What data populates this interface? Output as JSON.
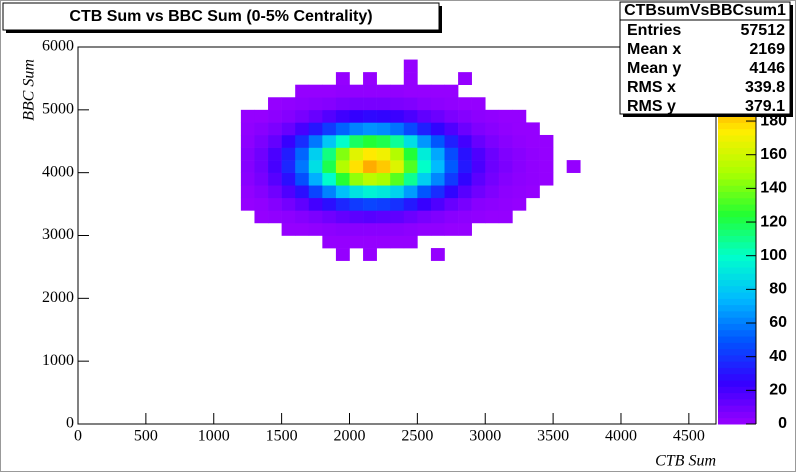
{
  "chart_data": {
    "type": "heatmap",
    "title": "CTB Sum vs BBC Sum (0-5% Centrality)",
    "x_label": "CTB Sum",
    "y_label": "BBC Sum",
    "xlim": [
      0,
      4700
    ],
    "xticks": [
      0,
      500,
      1000,
      1500,
      2000,
      2500,
      3000,
      3500,
      4000,
      4500
    ],
    "ylim": [
      0,
      6000
    ],
    "yticks": [
      0,
      1000,
      2000,
      3000,
      4000,
      5000,
      6000
    ],
    "x_bins": [
      1200,
      1300,
      1400,
      1500,
      1600,
      1700,
      1800,
      1900,
      2000,
      2100,
      2200,
      2300,
      2400,
      2500,
      2600,
      2700,
      2800,
      2900,
      3000,
      3100,
      3200,
      3300,
      3400,
      3500,
      3600,
      3700,
      3800
    ],
    "y_bins": [
      2600,
      2800,
      3000,
      3200,
      3400,
      3600,
      3800,
      4000,
      4200,
      4400,
      4600,
      4800,
      5000,
      5200,
      5400,
      5600,
      5800
    ],
    "values": [
      [
        0,
        0,
        0,
        0,
        0,
        0,
        0,
        1,
        0,
        1,
        0,
        0,
        0,
        0,
        1,
        0,
        0,
        0,
        0,
        0,
        0,
        0,
        0,
        0,
        0,
        0
      ],
      [
        0,
        0,
        0,
        0,
        0,
        0,
        1,
        1,
        1,
        1,
        1,
        1,
        1,
        0,
        0,
        0,
        0,
        0,
        0,
        0,
        0,
        0,
        0,
        0,
        0,
        0
      ],
      [
        0,
        0,
        0,
        1,
        1,
        2,
        3,
        4,
        4,
        4,
        4,
        4,
        3,
        2,
        2,
        1,
        1,
        0,
        0,
        0,
        0,
        0,
        0,
        0,
        0,
        0
      ],
      [
        0,
        1,
        2,
        3,
        5,
        7,
        10,
        13,
        15,
        16,
        15,
        14,
        11,
        8,
        6,
        4,
        3,
        2,
        1,
        1,
        0,
        0,
        0,
        0,
        0,
        0
      ],
      [
        1,
        2,
        5,
        9,
        14,
        21,
        29,
        36,
        42,
        45,
        43,
        39,
        32,
        24,
        18,
        12,
        8,
        4,
        3,
        2,
        1,
        0,
        0,
        0,
        0,
        0
      ],
      [
        2,
        5,
        10,
        18,
        29,
        45,
        61,
        77,
        89,
        95,
        92,
        83,
        67,
        50,
        38,
        26,
        16,
        10,
        6,
        3,
        2,
        1,
        0,
        0,
        0,
        0
      ],
      [
        4,
        8,
        16,
        29,
        48,
        72,
        99,
        125,
        145,
        154,
        149,
        134,
        109,
        82,
        62,
        42,
        26,
        15,
        9,
        5,
        3,
        2,
        1,
        0,
        0,
        0
      ],
      [
        5,
        10,
        20,
        36,
        58,
        88,
        120,
        152,
        177,
        188,
        182,
        164,
        133,
        100,
        75,
        51,
        32,
        19,
        11,
        7,
        4,
        2,
        1,
        0,
        1,
        0
      ],
      [
        5,
        10,
        19,
        33,
        54,
        82,
        112,
        142,
        165,
        175,
        170,
        152,
        124,
        93,
        70,
        47,
        30,
        18,
        11,
        6,
        4,
        2,
        1,
        0,
        0,
        0
      ],
      [
        3,
        7,
        13,
        24,
        38,
        58,
        79,
        100,
        117,
        124,
        120,
        108,
        88,
        66,
        50,
        34,
        21,
        12,
        7,
        4,
        2,
        1,
        1,
        0,
        0,
        0
      ],
      [
        2,
        4,
        7,
        12,
        20,
        31,
        42,
        53,
        61,
        65,
        63,
        57,
        46,
        34,
        26,
        18,
        11,
        6,
        4,
        2,
        1,
        1,
        0,
        0,
        0,
        0
      ],
      [
        1,
        1,
        3,
        5,
        8,
        12,
        17,
        22,
        25,
        27,
        26,
        23,
        19,
        14,
        11,
        7,
        5,
        3,
        2,
        1,
        1,
        0,
        0,
        0,
        0,
        0
      ],
      [
        0,
        0,
        1,
        2,
        3,
        4,
        5,
        7,
        8,
        8,
        8,
        7,
        6,
        4,
        3,
        2,
        1,
        1,
        0,
        0,
        0,
        0,
        0,
        0,
        0,
        0
      ],
      [
        0,
        0,
        0,
        0,
        1,
        1,
        1,
        2,
        2,
        2,
        2,
        2,
        1,
        1,
        1,
        1,
        0,
        0,
        0,
        0,
        0,
        0,
        0,
        0,
        0,
        0
      ],
      [
        0,
        0,
        0,
        0,
        0,
        0,
        0,
        1,
        0,
        1,
        0,
        0,
        1,
        0,
        0,
        0,
        1,
        0,
        0,
        0,
        0,
        0,
        0,
        0,
        0,
        0
      ],
      [
        0,
        0,
        0,
        0,
        0,
        0,
        0,
        0,
        0,
        0,
        0,
        0,
        1,
        0,
        0,
        0,
        0,
        0,
        0,
        0,
        0,
        0,
        0,
        0,
        0,
        0
      ]
    ],
    "zlim": [
      0,
      224
    ],
    "zticks": [
      0,
      20,
      40,
      60,
      80,
      100,
      120,
      140,
      160,
      180
    ],
    "palette": [
      "#9900ff",
      "#3300ff",
      "#0055ff",
      "#00bbff",
      "#00ffcc",
      "#22ff33",
      "#aaff00",
      "#ffee00",
      "#ff7700",
      "#ff0000"
    ],
    "stats_box": {
      "title": "CTBsumVsBBCsum1",
      "rows": [
        [
          "Entries",
          57512
        ],
        [
          "Mean x",
          2169
        ],
        [
          "Mean y",
          4146
        ],
        [
          "RMS x",
          339.8
        ],
        [
          "RMS y",
          379.1
        ]
      ]
    }
  }
}
